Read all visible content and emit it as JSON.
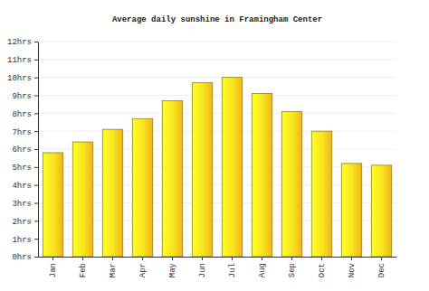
{
  "chart_data": {
    "type": "bar",
    "title": "Average daily sunshine in Framingham Center",
    "categories": [
      "Jan",
      "Feb",
      "Mar",
      "Apr",
      "May",
      "Jun",
      "Jul",
      "Aug",
      "Sep",
      "Oct",
      "Nov",
      "Dec"
    ],
    "values": [
      5.8,
      6.4,
      7.1,
      7.7,
      8.7,
      9.7,
      10.0,
      9.1,
      8.1,
      7.0,
      5.2,
      5.1
    ],
    "color": "#f7e41e",
    "ylim": [
      0,
      12
    ],
    "yticks": [
      {
        "value": 0,
        "label": "0hrs"
      },
      {
        "value": 1,
        "label": "1hrs"
      },
      {
        "value": 2,
        "label": "2hrs"
      },
      {
        "value": 3,
        "label": "3hrs"
      },
      {
        "value": 4,
        "label": "4hrs"
      },
      {
        "value": 5,
        "label": "5hrs"
      },
      {
        "value": 6,
        "label": "6hrs"
      },
      {
        "value": 7,
        "label": "7hrs"
      },
      {
        "value": 8,
        "label": "8hrs"
      },
      {
        "value": 9,
        "label": "9hrs"
      },
      {
        "value": 10,
        "label": "10hrs"
      },
      {
        "value": 11,
        "label": "11hrs"
      },
      {
        "value": 12,
        "label": "12hrs"
      }
    ],
    "grid": true
  }
}
